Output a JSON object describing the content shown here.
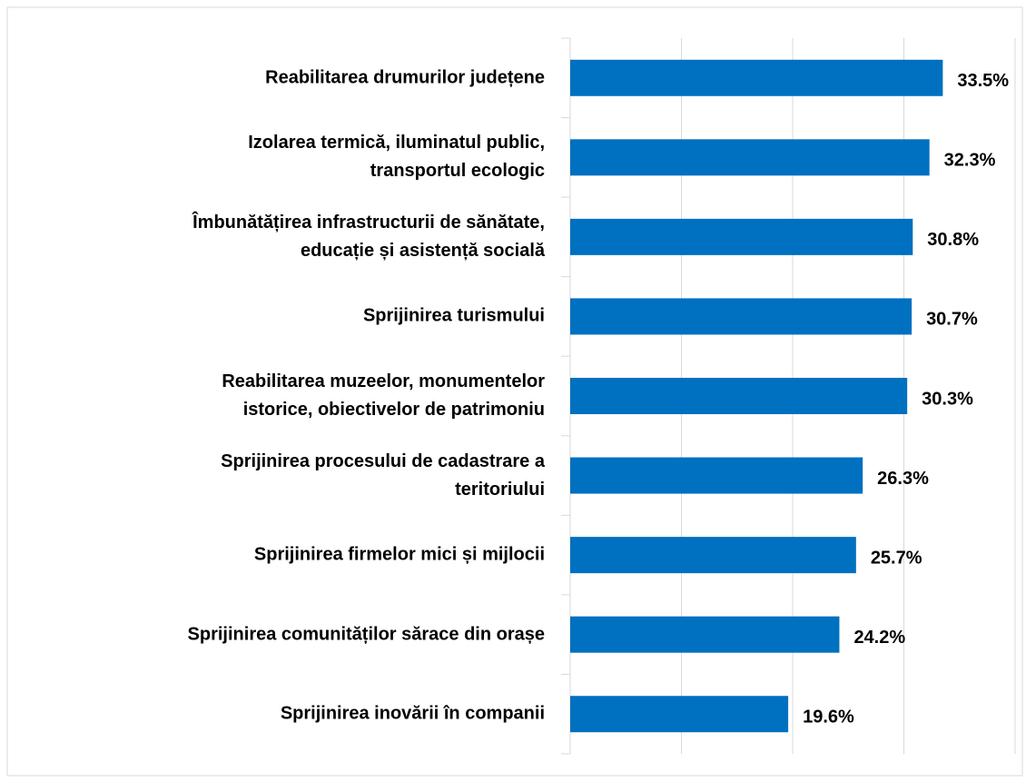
{
  "chart_data": {
    "type": "bar",
    "orientation": "horizontal",
    "categories": [
      "Reabilitarea drumurilor județene",
      "Izolarea termică, iluminatul public,\ntransportul ecologic",
      "Îmbunătățirea infrastructurii de sănătate,\neducație și asistență socială",
      "Sprijinirea turismului",
      "Reabilitarea muzeelor, monumentelor\nistorice, obiectivelor de patrimoniu",
      "Sprijinirea procesului de cadastrare a\nteritoriului",
      "Sprijinirea firmelor mici și mijlocii",
      "Sprijinirea comunităților sărace din orașe",
      "Sprijinirea inovării în companii"
    ],
    "values": [
      33.5,
      32.3,
      30.8,
      30.7,
      30.3,
      26.3,
      25.7,
      24.2,
      19.6
    ],
    "value_labels": [
      "33.5%",
      "32.3%",
      "30.8%",
      "30.7%",
      "30.3%",
      "26.3%",
      "25.7%",
      "24.2%",
      "19.6%"
    ],
    "color": "#0070c0",
    "xlim": [
      0,
      40
    ],
    "xticks": [
      0,
      10,
      20,
      30,
      40
    ],
    "grid": true
  }
}
